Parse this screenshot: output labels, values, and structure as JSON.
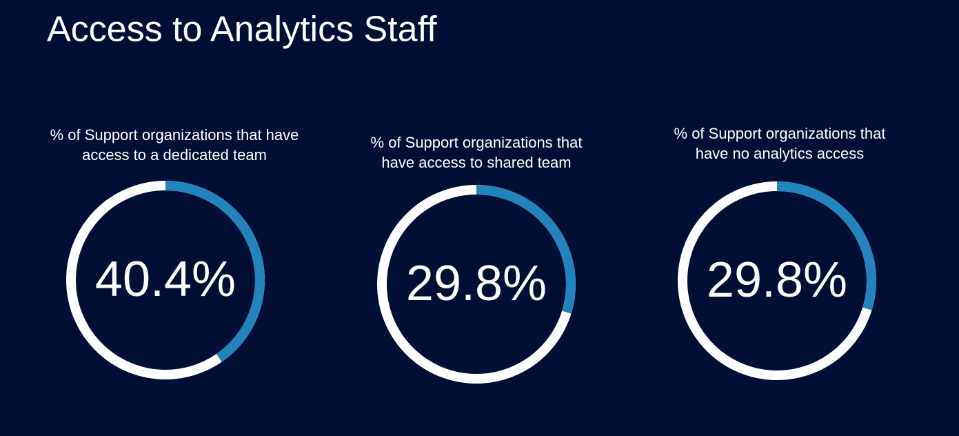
{
  "title": "Access to Analytics Staff",
  "chart_data": [
    {
      "type": "donut",
      "title": [
        "% of Support organizations that have",
        "access to a dedicated team"
      ],
      "values": [
        40.4
      ],
      "value_labels": [
        "40.4%"
      ],
      "range": [
        0,
        100
      ],
      "color": "#2384bd",
      "track_color": "#ffffff"
    },
    {
      "type": "donut",
      "title": [
        "% of Support organizations that",
        "have access to shared team"
      ],
      "values": [
        29.8
      ],
      "value_labels": [
        "29.8%"
      ],
      "range": [
        0,
        100
      ],
      "color": "#2384bd",
      "track_color": "#ffffff"
    },
    {
      "type": "donut",
      "title": [
        "% of Support organizations that",
        "have no analytics access"
      ],
      "values": [
        29.8
      ],
      "value_labels": [
        "29.8%"
      ],
      "range": [
        0,
        100
      ],
      "color": "#2384bd",
      "track_color": "#ffffff"
    }
  ]
}
